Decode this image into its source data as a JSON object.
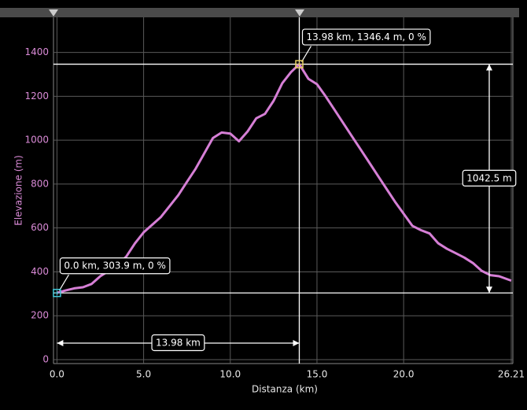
{
  "chart_data": {
    "type": "line",
    "x_label": "Distanza (km)",
    "y_label": "Elevazione (m)",
    "x": [
      0,
      0.5,
      1,
      1.5,
      2,
      2.5,
      3,
      3.5,
      4,
      4.5,
      5,
      5.5,
      6,
      6.5,
      7,
      7.5,
      8,
      8.5,
      9,
      9.5,
      10,
      10.5,
      11,
      11.5,
      12,
      12.5,
      13,
      13.5,
      13.98,
      14.5,
      15,
      15.5,
      16,
      16.5,
      17,
      17.5,
      18,
      18.5,
      19,
      19.5,
      20,
      20.5,
      21,
      21.5,
      22,
      22.5,
      23,
      23.5,
      24,
      24.5,
      25,
      25.5,
      26.21
    ],
    "values": [
      303.9,
      315,
      325,
      330,
      345,
      380,
      405,
      430,
      470,
      530,
      580,
      615,
      650,
      700,
      750,
      810,
      870,
      940,
      1010,
      1035,
      1030,
      995,
      1040,
      1100,
      1120,
      1180,
      1260,
      1310,
      1346.4,
      1280,
      1255,
      1200,
      1140,
      1080,
      1020,
      960,
      900,
      840,
      780,
      720,
      665,
      610,
      590,
      575,
      530,
      505,
      485,
      465,
      440,
      405,
      385,
      380,
      360
    ],
    "color": "#d67fd6",
    "xlim": [
      -0.2,
      26.3
    ],
    "ylim": [
      -18,
      1560
    ],
    "xticks": [
      {
        "value": 0,
        "label": "0.0"
      },
      {
        "value": 5,
        "label": "5.0"
      },
      {
        "value": 10,
        "label": "10.0"
      },
      {
        "value": 15,
        "label": "15.0"
      },
      {
        "value": 20,
        "label": "20.0"
      },
      26.21
    ],
    "yticks": [
      0,
      200,
      400,
      600,
      800,
      1000,
      1200,
      1400
    ],
    "grid": true,
    "markers": [
      {
        "x": 0,
        "y": 303.9,
        "label": "0.0 km, 303.9 m, 0 %",
        "color": "#40c8d8"
      },
      {
        "x": 13.98,
        "y": 1346.4,
        "label": "13.98 km, 1346.4 m, 0 %",
        "color": "#e8d060"
      }
    ],
    "distance_label": "13.98 km",
    "height_label": "1042.5 m"
  }
}
